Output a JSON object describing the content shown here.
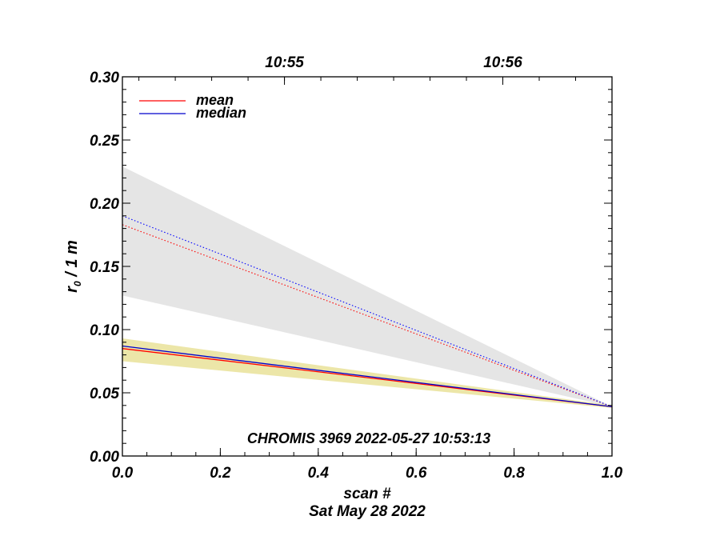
{
  "chart_data": {
    "type": "line",
    "title": "",
    "annotation": "CHROMIS 3969 2022-05-27 10:53:13",
    "xlabel": "scan #",
    "xlabel_date": "Sat May 28 2022",
    "ylabel": "r₀ / 1 m",
    "ylabel_main": "r",
    "ylabel_sub": "0",
    "ylabel_rest": " / 1 m",
    "xlim": [
      0.0,
      1.0
    ],
    "ylim": [
      0.0,
      0.3
    ],
    "x_ticks": [
      "0.0",
      "0.2",
      "0.4",
      "0.6",
      "0.8",
      "1.0"
    ],
    "y_ticks": [
      "0.00",
      "0.05",
      "0.10",
      "0.15",
      "0.20",
      "0.25",
      "0.30"
    ],
    "top_axis_ticks": [
      {
        "label": "10:55",
        "x": 0.331
      },
      {
        "label": "10:56",
        "x": 0.777
      }
    ],
    "legend_position": "top-left",
    "grid": false,
    "series": [
      {
        "name": "mean",
        "style": "solid",
        "color": "#ff0000",
        "x": [
          0.0,
          1.0
        ],
        "y": [
          0.085,
          0.039
        ]
      },
      {
        "name": "median",
        "style": "solid",
        "color": "#0000cc",
        "x": [
          0.0,
          1.0
        ],
        "y": [
          0.087,
          0.039
        ]
      },
      {
        "name": "",
        "style": "dotted",
        "color": "#ff0000",
        "x": [
          0.0,
          1.0
        ],
        "y": [
          0.183,
          0.039
        ]
      },
      {
        "name": "",
        "style": "dotted",
        "color": "#0000ff",
        "x": [
          0.0,
          1.0
        ],
        "y": [
          0.19,
          0.039
        ]
      }
    ],
    "bands": [
      {
        "color": "#e5e5e5",
        "x": [
          0.0,
          1.0
        ],
        "upper": [
          0.229,
          0.039
        ],
        "lower": [
          0.127,
          0.039
        ]
      },
      {
        "color": "#ece6a8",
        "x": [
          0.0,
          1.0
        ],
        "upper": [
          0.093,
          0.04
        ],
        "lower": [
          0.075,
          0.038
        ]
      }
    ]
  }
}
